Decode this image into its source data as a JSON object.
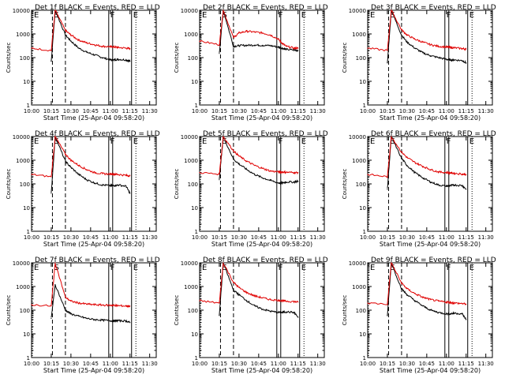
{
  "figure": {
    "xlabel": "Start Time (25-Apr-04 09:58:20)",
    "ylabel": "Counts/sec",
    "series_colors": {
      "events": "#000000",
      "lld": "#e00000"
    },
    "xticks": [
      "10:00",
      "10:15",
      "10:30",
      "10:45",
      "11:00",
      "11:15",
      "11:30"
    ],
    "yticks": [
      "10000",
      "1000",
      "100",
      "10",
      "1"
    ],
    "markers": [
      {
        "label": "E",
        "time": 10.01,
        "style": "dotted"
      },
      {
        "label": "S",
        "time": 10.265,
        "style": "dashed"
      },
      {
        "label": "",
        "time": 10.43,
        "style": "dashed"
      },
      {
        "label": "F",
        "time": 10.98,
        "style": "solid"
      },
      {
        "label": "",
        "time": 11.03,
        "style": "solid"
      },
      {
        "label": "E",
        "time": 11.27,
        "style": "solid"
      },
      {
        "label": "",
        "time": 11.325,
        "style": "dotted"
      }
    ]
  },
  "chart_data": [
    {
      "type": "line",
      "title": "Det 1f BLACK = Events, RED = LLD",
      "xlabel": "Start Time (25-Apr-04 09:58:20)",
      "ylabel": "Counts/sec",
      "xlim": [
        "10:00",
        "11:35"
      ],
      "ylim": [
        1,
        10000
      ],
      "log_y": true,
      "series": [
        {
          "name": "Events",
          "color": "#000000",
          "x": [
            10.25,
            10.3,
            10.43,
            10.5,
            10.6,
            10.7,
            10.8,
            10.9,
            11.0,
            11.05,
            11.1,
            11.2,
            11.25
          ],
          "y": [
            70,
            10000,
            900,
            500,
            250,
            170,
            130,
            100,
            80,
            80,
            85,
            80,
            70
          ]
        },
        {
          "name": "LLD",
          "color": "#e00000",
          "x": [
            10.0,
            10.25,
            10.3,
            10.43,
            10.5,
            10.6,
            10.7,
            10.8,
            10.9,
            11.0,
            11.05,
            11.1,
            11.2,
            11.25
          ],
          "y": [
            250,
            200,
            10000,
            1400,
            900,
            550,
            420,
            350,
            300,
            290,
            280,
            270,
            250,
            240
          ]
        }
      ]
    },
    {
      "type": "line",
      "title": "Det 2f BLACK = Events, RED = LLD",
      "xlabel": "Start Time (25-Apr-04 09:58:20)",
      "ylabel": "Counts/sec",
      "xlim": [
        "10:00",
        "11:35"
      ],
      "ylim": [
        1,
        10000
      ],
      "log_y": true,
      "series": [
        {
          "name": "Events",
          "color": "#000000",
          "x": [
            10.25,
            10.3,
            10.43,
            10.5,
            10.6,
            10.7,
            10.8,
            10.9,
            11.0,
            11.05,
            11.1,
            11.2,
            11.25
          ],
          "y": [
            150,
            10000,
            300,
            320,
            330,
            340,
            330,
            320,
            280,
            250,
            220,
            210,
            200
          ]
        },
        {
          "name": "LLD",
          "color": "#e00000",
          "x": [
            10.0,
            10.25,
            10.3,
            10.43,
            10.5,
            10.6,
            10.7,
            10.8,
            10.9,
            11.0,
            11.05,
            11.1,
            11.2,
            11.25
          ],
          "y": [
            500,
            350,
            10000,
            700,
            1100,
            1300,
            1200,
            1100,
            900,
            600,
            400,
            300,
            250,
            250
          ]
        }
      ]
    },
    {
      "type": "line",
      "title": "Det 3f BLACK = Events, RED = LLD",
      "xlabel": "Start Time (25-Apr-04 09:58:20)",
      "ylabel": "Counts/sec",
      "xlim": [
        "10:00",
        "11:35"
      ],
      "ylim": [
        1,
        10000
      ],
      "log_y": true,
      "series": [
        {
          "name": "Events",
          "color": "#000000",
          "x": [
            10.25,
            10.3,
            10.43,
            10.5,
            10.6,
            10.7,
            10.8,
            10.9,
            11.0,
            11.05,
            11.1,
            11.2,
            11.25
          ],
          "y": [
            60,
            10000,
            900,
            450,
            250,
            160,
            120,
            100,
            85,
            80,
            80,
            75,
            60
          ]
        },
        {
          "name": "LLD",
          "color": "#e00000",
          "x": [
            10.0,
            10.25,
            10.3,
            10.43,
            10.5,
            10.6,
            10.7,
            10.8,
            10.9,
            11.0,
            11.05,
            11.1,
            11.2,
            11.25
          ],
          "y": [
            250,
            200,
            10000,
            1500,
            900,
            600,
            450,
            350,
            300,
            280,
            270,
            260,
            240,
            230
          ]
        }
      ]
    },
    {
      "type": "line",
      "title": "Det 4f BLACK = Events, RED = LLD",
      "xlabel": "Start Time (25-Apr-04 09:58:20)",
      "ylabel": "Counts/sec",
      "xlim": [
        "10:00",
        "11:35"
      ],
      "ylim": [
        1,
        10000
      ],
      "log_y": true,
      "series": [
        {
          "name": "Events",
          "color": "#000000",
          "x": [
            10.25,
            10.3,
            10.43,
            10.5,
            10.6,
            10.7,
            10.8,
            10.9,
            11.0,
            11.05,
            11.1,
            11.2,
            11.25
          ],
          "y": [
            40,
            10000,
            900,
            500,
            250,
            150,
            110,
            90,
            85,
            85,
            90,
            80,
            40
          ]
        },
        {
          "name": "LLD",
          "color": "#e00000",
          "x": [
            10.0,
            10.25,
            10.3,
            10.43,
            10.5,
            10.6,
            10.7,
            10.8,
            10.9,
            11.0,
            11.05,
            11.1,
            11.2,
            11.25
          ],
          "y": [
            250,
            200,
            10000,
            1800,
            1000,
            600,
            400,
            300,
            270,
            260,
            260,
            250,
            230,
            220
          ]
        }
      ]
    },
    {
      "type": "line",
      "title": "Det 5f BLACK = Events, RED = LLD",
      "xlabel": "Start Time (25-Apr-04 09:58:20)",
      "ylabel": "Counts/sec",
      "xlim": [
        "10:00",
        "11:35"
      ],
      "ylim": [
        1,
        10000
      ],
      "log_y": true,
      "series": [
        {
          "name": "Events",
          "color": "#000000",
          "x": [
            10.25,
            10.3,
            10.43,
            10.5,
            10.6,
            10.7,
            10.8,
            10.9,
            11.0,
            11.05,
            11.1,
            11.2,
            11.25
          ],
          "y": [
            150,
            10000,
            1100,
            700,
            400,
            250,
            180,
            140,
            110,
            110,
            120,
            120,
            130
          ]
        },
        {
          "name": "LLD",
          "color": "#e00000",
          "x": [
            10.0,
            10.25,
            10.3,
            10.43,
            10.5,
            10.6,
            10.7,
            10.8,
            10.9,
            11.0,
            11.05,
            11.1,
            11.2,
            11.25
          ],
          "y": [
            300,
            260,
            10000,
            2500,
            1500,
            900,
            600,
            450,
            350,
            320,
            320,
            310,
            300,
            300
          ]
        }
      ]
    },
    {
      "type": "line",
      "title": "Det 6f BLACK = Events, RED = LLD",
      "xlabel": "Start Time (25-Apr-04 09:58:20)",
      "ylabel": "Counts/sec",
      "xlim": [
        "10:00",
        "11:35"
      ],
      "ylim": [
        1,
        10000
      ],
      "log_y": true,
      "series": [
        {
          "name": "Events",
          "color": "#000000",
          "x": [
            10.25,
            10.3,
            10.43,
            10.5,
            10.6,
            10.7,
            10.8,
            10.9,
            11.0,
            11.05,
            11.1,
            11.2,
            11.25
          ],
          "y": [
            60,
            10000,
            1200,
            600,
            300,
            180,
            120,
            90,
            80,
            85,
            90,
            85,
            60
          ]
        },
        {
          "name": "LLD",
          "color": "#e00000",
          "x": [
            10.0,
            10.25,
            10.3,
            10.43,
            10.5,
            10.6,
            10.7,
            10.8,
            10.9,
            11.0,
            11.05,
            11.1,
            11.2,
            11.25
          ],
          "y": [
            250,
            200,
            10000,
            2200,
            1300,
            800,
            550,
            400,
            320,
            300,
            290,
            280,
            260,
            250
          ]
        }
      ]
    },
    {
      "type": "line",
      "title": "Det 7f BLACK = Events, RED = LLD",
      "xlabel": "Start Time (25-Apr-04 09:58:20)",
      "ylabel": "Counts/sec",
      "xlim": [
        "10:00",
        "11:35"
      ],
      "ylim": [
        1,
        10000
      ],
      "log_y": true,
      "series": [
        {
          "name": "Events",
          "color": "#000000",
          "x": [
            10.25,
            10.3,
            10.43,
            10.5,
            10.6,
            10.7,
            10.8,
            10.9,
            11.0,
            11.05,
            11.1,
            11.2,
            11.25
          ],
          "y": [
            45,
            1200,
            100,
            70,
            55,
            45,
            40,
            38,
            36,
            35,
            36,
            35,
            30
          ]
        },
        {
          "name": "LLD",
          "color": "#e00000",
          "x": [
            10.0,
            10.25,
            10.3,
            10.43,
            10.5,
            10.6,
            10.7,
            10.8,
            10.9,
            11.0,
            11.05,
            11.1,
            11.2,
            11.25
          ],
          "y": [
            170,
            150,
            10000,
            350,
            240,
            200,
            180,
            170,
            165,
            160,
            160,
            155,
            150,
            150
          ]
        }
      ]
    },
    {
      "type": "line",
      "title": "Det 8f BLACK = Events, RED = LLD",
      "xlabel": "Start Time (25-Apr-04 09:58:20)",
      "ylabel": "Counts/sec",
      "xlim": [
        "10:00",
        "11:35"
      ],
      "ylim": [
        1,
        10000
      ],
      "log_y": true,
      "series": [
        {
          "name": "Events",
          "color": "#000000",
          "x": [
            10.25,
            10.3,
            10.43,
            10.5,
            10.6,
            10.7,
            10.8,
            10.9,
            11.0,
            11.05,
            11.1,
            11.2,
            11.25
          ],
          "y": [
            60,
            10000,
            700,
            450,
            250,
            150,
            110,
            90,
            80,
            80,
            85,
            80,
            50
          ]
        },
        {
          "name": "LLD",
          "color": "#e00000",
          "x": [
            10.0,
            10.25,
            10.3,
            10.43,
            10.5,
            10.6,
            10.7,
            10.8,
            10.9,
            11.0,
            11.05,
            11.1,
            11.2,
            11.25
          ],
          "y": [
            250,
            200,
            10000,
            1500,
            900,
            550,
            400,
            330,
            280,
            260,
            250,
            240,
            230,
            220
          ]
        }
      ]
    },
    {
      "type": "line",
      "title": "Det 9f BLACK = Events, RED = LLD",
      "xlabel": "Start Time (25-Apr-04 09:58:20)",
      "ylabel": "Counts/sec",
      "xlim": [
        "10:00",
        "11:35"
      ],
      "ylim": [
        1,
        10000
      ],
      "log_y": true,
      "series": [
        {
          "name": "Events",
          "color": "#000000",
          "x": [
            10.25,
            10.3,
            10.43,
            10.5,
            10.6,
            10.7,
            10.8,
            10.9,
            11.0,
            11.05,
            11.1,
            11.2,
            11.25
          ],
          "y": [
            60,
            10000,
            800,
            450,
            250,
            150,
            100,
            80,
            70,
            70,
            75,
            70,
            40
          ]
        },
        {
          "name": "LLD",
          "color": "#e00000",
          "x": [
            10.0,
            10.25,
            10.3,
            10.43,
            10.5,
            10.6,
            10.7,
            10.8,
            10.9,
            11.0,
            11.05,
            11.1,
            11.2,
            11.25
          ],
          "y": [
            200,
            180,
            10000,
            1400,
            800,
            500,
            350,
            280,
            240,
            220,
            210,
            200,
            190,
            180
          ]
        }
      ]
    }
  ]
}
